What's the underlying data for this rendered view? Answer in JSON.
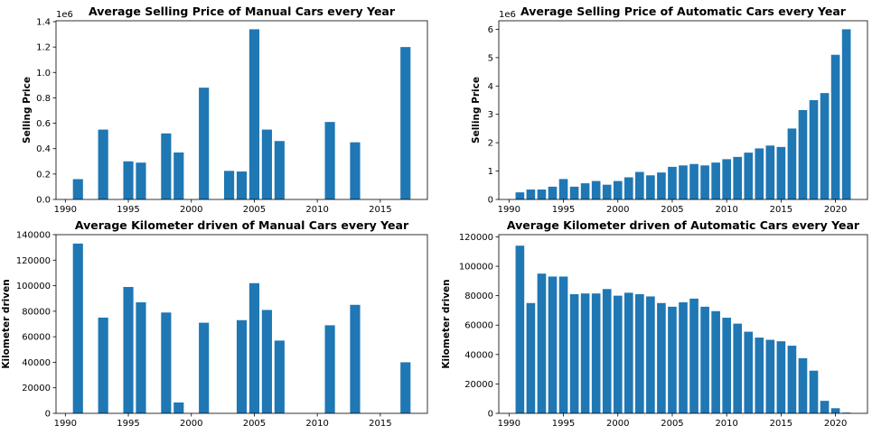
{
  "chart_data": [
    {
      "type": "bar",
      "title": "Average Selling Price of Manual Cars every Year",
      "ylabel": "Selling Price",
      "y_offset_label": "1e6",
      "color": "#1f77b4",
      "x": [
        1991,
        1993,
        1995,
        1996,
        1998,
        1999,
        2001,
        2003,
        2004,
        2005,
        2006,
        2007,
        2011,
        2013,
        2017
      ],
      "values": [
        0.16,
        0.55,
        0.3,
        0.29,
        0.52,
        0.37,
        0.88,
        0.225,
        0.22,
        1.34,
        0.55,
        0.46,
        0.61,
        0.45,
        1.2
      ],
      "xlim": [
        1989.26,
        2018.74
      ],
      "xticks": [
        1990,
        1995,
        2000,
        2005,
        2010,
        2015
      ],
      "ylim": [
        0,
        1.407
      ],
      "yticks": [
        {
          "value": 0,
          "label": "0.0"
        },
        {
          "value": 0.2,
          "label": "0.2"
        },
        {
          "value": 0.4,
          "label": "0.4"
        },
        {
          "value": 0.6,
          "label": "0.6"
        },
        {
          "value": 0.8,
          "label": "0.8"
        },
        {
          "value": 1,
          "label": "1.0"
        },
        {
          "value": 1.2,
          "label": "1.2"
        },
        {
          "value": 1.4,
          "label": "1.4"
        }
      ]
    },
    {
      "type": "bar",
      "title": "Average Selling Price of Automatic Cars every Year",
      "ylabel": "Selling Price",
      "y_offset_label": "1e6",
      "color": "#1f77b4",
      "x": [
        1991,
        1992,
        1993,
        1994,
        1995,
        1996,
        1997,
        1998,
        1999,
        2000,
        2001,
        2002,
        2003,
        2004,
        2005,
        2006,
        2007,
        2008,
        2009,
        2010,
        2011,
        2012,
        2013,
        2014,
        2015,
        2016,
        2017,
        2018,
        2019,
        2020,
        2021
      ],
      "values": [
        0.25,
        0.35,
        0.35,
        0.45,
        0.72,
        0.45,
        0.57,
        0.65,
        0.52,
        0.65,
        0.78,
        0.97,
        0.85,
        0.95,
        1.15,
        1.2,
        1.25,
        1.2,
        1.3,
        1.42,
        1.5,
        1.65,
        1.8,
        1.9,
        1.85,
        2.5,
        3.15,
        3.5,
        3.75,
        5.1,
        6.0
      ],
      "xlim": [
        1989.06,
        2022.94
      ],
      "xticks": [
        1990,
        1995,
        2000,
        2005,
        2010,
        2015,
        2020
      ],
      "ylim": [
        0,
        6.3
      ],
      "yticks": [
        0,
        1,
        2,
        3,
        4,
        5,
        6
      ]
    },
    {
      "type": "bar",
      "title": "Average Kilometer driven of Manual Cars every Year",
      "ylabel": "Kilometer driven",
      "color": "#1f77b4",
      "x": [
        1991,
        1993,
        1995,
        1996,
        1998,
        1999,
        2001,
        2004,
        2005,
        2006,
        2007,
        2011,
        2013,
        2017
      ],
      "values": [
        133000,
        75000,
        99000,
        87000,
        79000,
        8500,
        71000,
        73000,
        102000,
        81000,
        57000,
        69000,
        85000,
        40000
      ],
      "xlim": [
        1989.26,
        2018.74
      ],
      "xticks": [
        1990,
        1995,
        2000,
        2005,
        2010,
        2015
      ],
      "ylim": [
        0,
        140000
      ],
      "yticks": [
        0,
        20000,
        40000,
        60000,
        80000,
        100000,
        120000,
        140000
      ]
    },
    {
      "type": "bar",
      "title": "Average Kilometer driven of Automatic Cars every Year",
      "ylabel": "Kilometer driven",
      "color": "#1f77b4",
      "x": [
        1991,
        1992,
        1993,
        1994,
        1995,
        1996,
        1997,
        1998,
        1999,
        2000,
        2001,
        2002,
        2003,
        2004,
        2005,
        2006,
        2007,
        2008,
        2009,
        2010,
        2011,
        2012,
        2013,
        2014,
        2015,
        2016,
        2017,
        2018,
        2019,
        2020,
        2021
      ],
      "values": [
        114000,
        75000,
        95000,
        93000,
        93000,
        81000,
        81500,
        81500,
        84500,
        80000,
        82000,
        81000,
        79500,
        75000,
        72500,
        75500,
        78000,
        72500,
        69500,
        65000,
        61000,
        55500,
        51500,
        50000,
        49000,
        46000,
        37500,
        29000,
        8500,
        3500,
        500
      ],
      "xlim": [
        1989.06,
        2022.94
      ],
      "xticks": [
        1990,
        1995,
        2000,
        2005,
        2010,
        2015,
        2020
      ],
      "ylim": [
        0,
        121500
      ],
      "yticks": [
        0,
        20000,
        40000,
        60000,
        80000,
        100000,
        120000
      ]
    }
  ]
}
